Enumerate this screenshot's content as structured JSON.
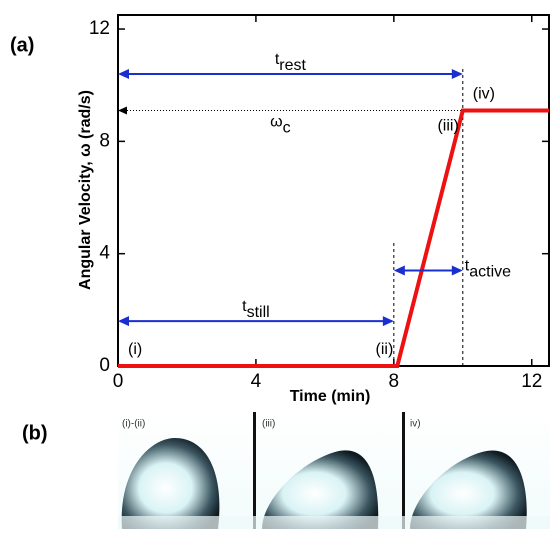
{
  "chart_data": {
    "type": "line",
    "panel_label": "(a)",
    "x_label": "Time (min)",
    "y_label": "Angular Velocity, ω (rad/s)",
    "x": [
      0,
      8.1,
      10,
      12.5
    ],
    "values": [
      0,
      0,
      9.1,
      9.1
    ],
    "color": "#ee1111",
    "xlim": [
      0,
      12.5
    ],
    "ylim": [
      0,
      12.5
    ],
    "xticks": [
      0,
      4,
      8,
      12
    ],
    "yticks": [
      0,
      4,
      8,
      12
    ],
    "point_labels": [
      "(i)",
      "(ii)",
      "(iii)",
      "(iv)"
    ],
    "arrows": [
      {
        "label": "t",
        "sub": "rest",
        "x": [
          0,
          10
        ],
        "y": 10.4
      },
      {
        "label": "t",
        "sub": "still",
        "x": [
          0,
          8
        ],
        "y": 1.6
      },
      {
        "label": "t",
        "sub": "active",
        "x": [
          8,
          10
        ],
        "y": 3.4
      }
    ],
    "threshold": {
      "label": "ω",
      "sub": "c",
      "x": [
        0,
        10
      ],
      "y": 9.1
    },
    "guides": [
      {
        "x": 8,
        "y": [
          0,
          4.4
        ]
      },
      {
        "x": 10,
        "y": [
          0,
          10.6
        ]
      }
    ]
  },
  "panel_b": {
    "label": "(b)",
    "frames": [
      "(i)-(ii)",
      "(iii)",
      "iv)"
    ]
  }
}
